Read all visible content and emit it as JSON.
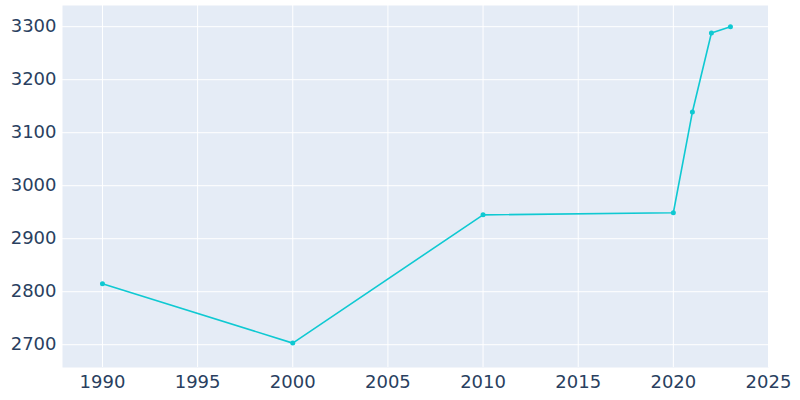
{
  "chart_data": {
    "type": "line",
    "x": [
      1990,
      2000,
      2010,
      2020,
      2021,
      2022,
      2023
    ],
    "values": [
      2815,
      2703,
      2945,
      2949,
      3139,
      3288,
      3300
    ],
    "color": "#0fc9d2",
    "marker": "circle",
    "xlim": [
      1987.9,
      2025
    ],
    "xticks": [
      1990,
      1995,
      2000,
      2005,
      2010,
      2015,
      2020,
      2025
    ],
    "ylim": [
      2657,
      3340
    ],
    "yticks": [
      2700,
      2800,
      2900,
      3000,
      3100,
      3200,
      3300
    ],
    "grid": true
  }
}
